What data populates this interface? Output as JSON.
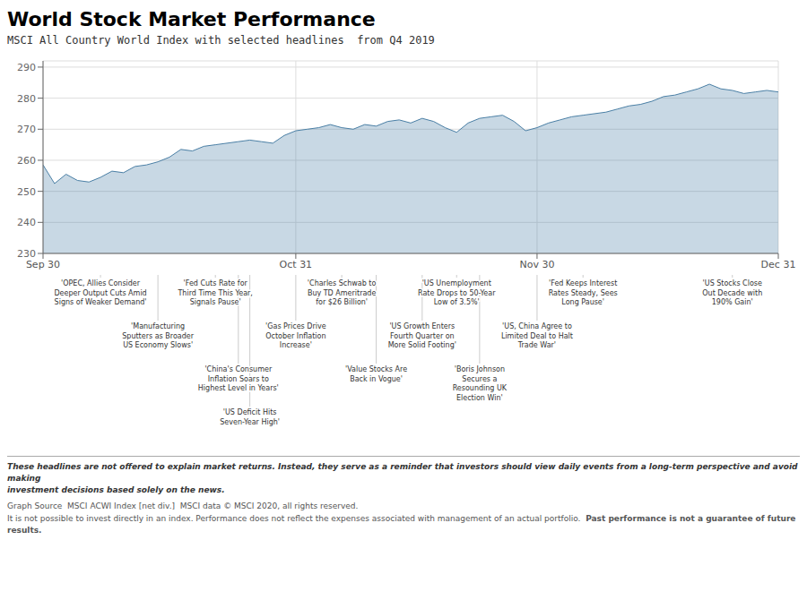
{
  "chart_data": {
    "type": "area",
    "title": "World Stock Market Performance",
    "subtitle": "MSCI All Country World Index with selected headlines  from Q4 2019",
    "color": "#4a7fa5",
    "grid": true,
    "x": [
      0,
      1,
      2,
      3,
      4,
      5,
      6,
      7,
      8,
      9,
      10,
      11,
      12,
      13,
      14,
      15,
      16,
      17,
      18,
      19,
      20,
      21,
      22,
      23,
      24,
      25,
      26,
      27,
      28,
      29,
      30,
      31,
      32,
      33,
      34,
      35,
      36,
      37,
      38,
      39,
      40,
      41,
      42,
      43,
      44,
      45,
      46,
      47,
      48,
      49,
      50,
      51,
      52,
      53,
      54,
      55,
      56,
      57,
      58,
      59,
      60,
      61,
      62,
      63,
      64
    ],
    "values": [
      258.5,
      252.5,
      255.5,
      253.5,
      253.0,
      254.5,
      256.5,
      256.0,
      258.0,
      258.5,
      259.5,
      261.0,
      263.5,
      263.0,
      264.5,
      265.0,
      265.5,
      266.0,
      266.5,
      266.0,
      265.5,
      268.0,
      269.5,
      270.0,
      270.5,
      271.5,
      270.5,
      270.0,
      271.5,
      271.0,
      272.5,
      273.0,
      272.0,
      273.5,
      272.5,
      270.5,
      269.0,
      272.0,
      273.5,
      274.0,
      274.5,
      272.5,
      269.5,
      270.5,
      272.0,
      273.0,
      274.0,
      274.5,
      275.0,
      275.5,
      276.5,
      277.5,
      278.0,
      279.0,
      280.5,
      281.0,
      282.0,
      283.0,
      284.5,
      283.0,
      282.5,
      281.5,
      282.0,
      282.5,
      282.0
    ],
    "xlim": [
      0,
      64
    ],
    "xticks": [
      {
        "value": 0,
        "label": "Sep 30"
      },
      {
        "value": 22,
        "label": "Oct 31"
      },
      {
        "value": 43,
        "label": "Nov 30"
      },
      {
        "value": 64,
        "label": "Dec 31"
      }
    ],
    "ylim": [
      230,
      292
    ],
    "yticks": [
      230,
      240,
      250,
      260,
      270,
      280,
      290
    ],
    "annotations": [
      {
        "x": 5,
        "text": "'OPEC, Allies Consider\nDeeper Output Cuts Amid\nSigns of Weaker Demand'"
      },
      {
        "x": 10,
        "text": "'Manufacturing\nSputters as Broader\nUS Economy Slows'"
      },
      {
        "x": 15,
        "text": "'Fed Cuts Rate for\nThird Time This Year,\nSignals Pause'"
      },
      {
        "x": 17,
        "text": "'China's Consumer\nInflation Soars to\nHighest Level in Years'"
      },
      {
        "x": 18,
        "text": "'US Deficit Hits\nSeven-Year High'"
      },
      {
        "x": 22,
        "text": "'Gas Prices Drive\nOctober Inflation\nIncrease'"
      },
      {
        "x": 26,
        "text": "'Charles Schwab to\nBuy TD Ameritrade\nfor $26 Billion'"
      },
      {
        "x": 29,
        "text": "'Value Stocks Are\nBack in Vogue'"
      },
      {
        "x": 33,
        "text": "'US Growth Enters\nFourth Quarter on\nMore Solid Footing'"
      },
      {
        "x": 36,
        "text": "'US Unemployment\nRate Drops to 50-Year\nLow of 3.5%'"
      },
      {
        "x": 38,
        "text": "'Boris Johnson\nSecures a\nResounding UK\nElection Win'"
      },
      {
        "x": 43,
        "text": "'US, China Agree to\nLimited Deal to Halt\nTrade War'"
      },
      {
        "x": 47,
        "text": "'Fed Keeps Interest\nRates Steady, Sees\nLong Pause'"
      },
      {
        "x": 60,
        "text": "'US Stocks Close\nOut Decade with\n190% Gain'"
      }
    ],
    "footnotes": [
      [
        {
          "text": "These headlines are not offered to explain market returns. Instead, they serve as a reminder that investors should view daily events from a long-term perspective and avoid making\ninvestment decisions based solely on the news.",
          "style": "bold italic"
        }
      ],
      [
        {
          "text": "Graph Source  MSCI ACWI Index [net div.]  MSCI data © MSCI 2020, all rights reserved."
        }
      ],
      [
        {
          "text": "It is not possible to invest directly in an index. Performance does not reflect the expenses associated with management of an actual portfolio.  "
        },
        {
          "text": "Past performance is not a guarantee of future results.",
          "style": "bold"
        }
      ]
    ]
  }
}
